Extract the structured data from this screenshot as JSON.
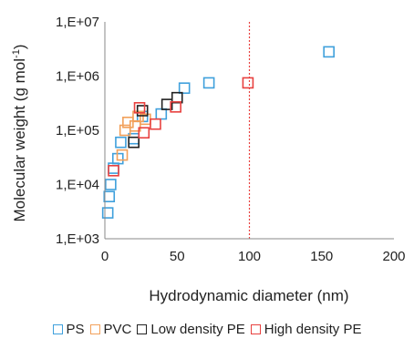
{
  "chart_data": {
    "type": "scatter",
    "xlabel": "Hydrodynamic diameter (nm)",
    "ylabel_main": "Molecular weight (g mol",
    "ylabel_sup": "-1",
    "ylabel_close": ")",
    "xlim": [
      0,
      200
    ],
    "ylim": [
      1000,
      10000000
    ],
    "y_scale": "log",
    "x_ticks": [
      "0",
      "50",
      "100",
      "150",
      "200"
    ],
    "y_ticks": [
      "1,E+03",
      "1,E+04",
      "1,E+05",
      "1,E+06",
      "1,E+07"
    ],
    "grid": false,
    "legend_position": "bottom",
    "reference_line": {
      "x": 100,
      "color": "#e8413f",
      "style": "dotted"
    },
    "series": [
      {
        "name": "PS",
        "color": "#3fa0dc",
        "points": [
          [
            2,
            3000
          ],
          [
            3,
            6000
          ],
          [
            4,
            10000
          ],
          [
            6,
            20000
          ],
          [
            9,
            30000
          ],
          [
            11,
            60000
          ],
          [
            20,
            70000
          ],
          [
            26,
            180000
          ],
          [
            39,
            200000
          ],
          [
            55,
            600000
          ],
          [
            72,
            750000
          ],
          [
            155,
            2800000
          ]
        ]
      },
      {
        "name": "PVC",
        "color": "#f2a05a",
        "points": [
          [
            12,
            35000
          ],
          [
            14,
            100000
          ],
          [
            16,
            140000
          ],
          [
            21,
            120000
          ],
          [
            23,
            180000
          ],
          [
            28,
            160000
          ]
        ]
      },
      {
        "name": "Low density PE",
        "color": "#222222",
        "points": [
          [
            20,
            60000
          ],
          [
            26,
            230000
          ],
          [
            43,
            300000
          ],
          [
            50,
            400000
          ]
        ]
      },
      {
        "name": "High density PE",
        "color": "#e8413f",
        "points": [
          [
            6,
            18000
          ],
          [
            24,
            260000
          ],
          [
            27,
            90000
          ],
          [
            35,
            130000
          ],
          [
            49,
            270000
          ],
          [
            99,
            750000
          ]
        ]
      }
    ]
  }
}
